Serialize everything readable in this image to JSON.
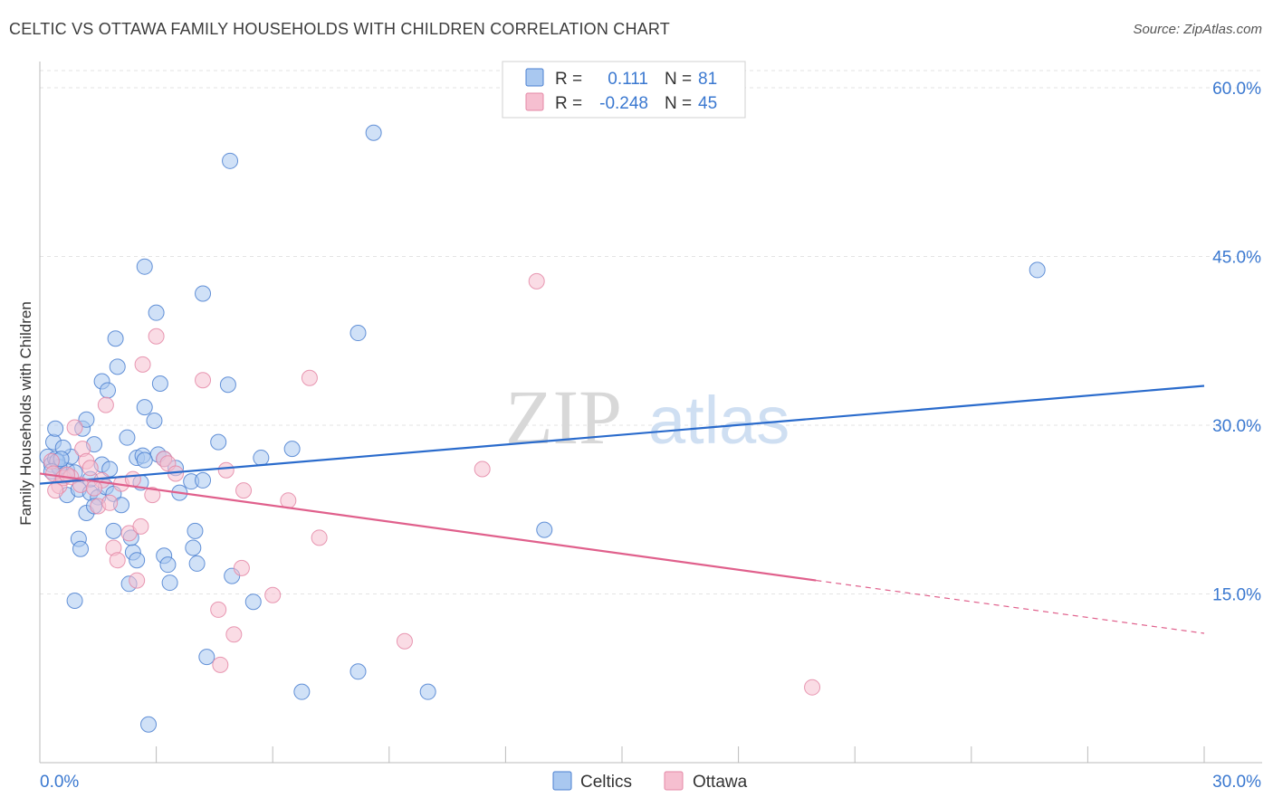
{
  "title": "CELTIC VS OTTAWA FAMILY HOUSEHOLDS WITH CHILDREN CORRELATION CHART",
  "source": "Source: ZipAtlas.com",
  "watermark": {
    "part1": "ZIP",
    "part2": "atlas"
  },
  "colors": {
    "celtics_fill": "#a9c8f0",
    "celtics_stroke": "#4a7fd0",
    "celtics_line": "#2a6bcc",
    "ottawa_fill": "#f6bfd0",
    "ottawa_stroke": "#e487a6",
    "ottawa_line": "#e0608c",
    "axis_label": "#3a78d0",
    "grid": "#e3e3e3",
    "text": "#333333"
  },
  "legend_stats": {
    "celtics": {
      "r_label": "R =",
      "r_value": "0.111",
      "n_label": "N =",
      "n_value": "81"
    },
    "ottawa": {
      "r_label": "R =",
      "r_value": "-0.248",
      "n_label": "N =",
      "n_value": "45"
    }
  },
  "chart_data": {
    "type": "scatter",
    "title": "CELTIC VS OTTAWA FAMILY HOUSEHOLDS WITH CHILDREN CORRELATION CHART",
    "xlabel": "",
    "ylabel": "Family Households with Children",
    "xlim": [
      0,
      30
    ],
    "ylim": [
      0,
      63
    ],
    "x_tick_labels": [
      "0.0%",
      "30.0%"
    ],
    "y_tick_labels": [
      "15.0%",
      "30.0%",
      "45.0%",
      "60.0%"
    ],
    "y_ticks": [
      15,
      30,
      45,
      60
    ],
    "grid": "horizontal dashed",
    "legend_position": "bottom-center",
    "series": [
      {
        "name": "Celtics",
        "color": "#4a7fd0",
        "points": [
          [
            0.2,
            27.2
          ],
          [
            0.3,
            26.5
          ],
          [
            0.4,
            27.0
          ],
          [
            0.5,
            26.2
          ],
          [
            0.35,
            28.5
          ],
          [
            0.4,
            29.7
          ],
          [
            0.6,
            25.5
          ],
          [
            0.7,
            26.0
          ],
          [
            0.5,
            26.3
          ],
          [
            0.8,
            27.2
          ],
          [
            0.9,
            25.8
          ],
          [
            0.7,
            23.8
          ],
          [
            0.6,
            28.0
          ],
          [
            1.0,
            24.3
          ],
          [
            1.1,
            29.7
          ],
          [
            1.2,
            30.5
          ],
          [
            1.4,
            28.3
          ],
          [
            1.3,
            24.0
          ],
          [
            1.5,
            23.6
          ],
          [
            1.2,
            22.2
          ],
          [
            1.4,
            22.8
          ],
          [
            1.6,
            26.5
          ],
          [
            1.8,
            26.1
          ],
          [
            1.7,
            24.5
          ],
          [
            1.9,
            23.9
          ],
          [
            2.1,
            22.9
          ],
          [
            1.6,
            33.9
          ],
          [
            1.75,
            33.1
          ],
          [
            1.95,
            37.7
          ],
          [
            2.0,
            35.2
          ],
          [
            2.25,
            28.9
          ],
          [
            2.5,
            27.1
          ],
          [
            2.6,
            24.9
          ],
          [
            2.65,
            27.3
          ],
          [
            2.7,
            31.6
          ],
          [
            2.95,
            30.4
          ],
          [
            3.0,
            40.0
          ],
          [
            3.1,
            33.7
          ],
          [
            3.2,
            18.4
          ],
          [
            3.3,
            17.6
          ],
          [
            3.35,
            16.0
          ],
          [
            3.05,
            27.4
          ],
          [
            3.2,
            27.0
          ],
          [
            2.7,
            44.1
          ],
          [
            3.6,
            24.0
          ],
          [
            3.9,
            25.0
          ],
          [
            4.2,
            25.1
          ],
          [
            4.0,
            20.6
          ],
          [
            3.95,
            19.1
          ],
          [
            4.05,
            17.7
          ],
          [
            4.2,
            41.7
          ],
          [
            4.6,
            28.5
          ],
          [
            4.85,
            33.6
          ],
          [
            4.95,
            16.6
          ],
          [
            4.9,
            53.5
          ],
          [
            4.3,
            9.4
          ],
          [
            5.5,
            14.3
          ],
          [
            5.7,
            27.1
          ],
          [
            6.5,
            27.9
          ],
          [
            6.75,
            6.3
          ],
          [
            8.2,
            38.2
          ],
          [
            8.2,
            8.1
          ],
          [
            8.6,
            56.0
          ],
          [
            10.0,
            6.3
          ],
          [
            13.0,
            20.7
          ],
          [
            25.7,
            43.8
          ],
          [
            2.8,
            3.4
          ],
          [
            2.3,
            15.9
          ],
          [
            1.9,
            20.6
          ],
          [
            1.0,
            19.9
          ],
          [
            1.05,
            19.0
          ],
          [
            2.4,
            18.7
          ],
          [
            2.5,
            18.0
          ],
          [
            0.9,
            14.4
          ],
          [
            2.35,
            20.0
          ],
          [
            2.7,
            26.9
          ],
          [
            1.3,
            25.2
          ],
          [
            0.45,
            26.8
          ],
          [
            0.3,
            25.9
          ],
          [
            0.55,
            27.0
          ],
          [
            3.5,
            26.2
          ]
        ]
      },
      {
        "name": "Ottawa",
        "color": "#e487a6",
        "points": [
          [
            0.3,
            26.8
          ],
          [
            0.35,
            25.7
          ],
          [
            0.5,
            24.6
          ],
          [
            0.6,
            25.3
          ],
          [
            0.4,
            24.2
          ],
          [
            0.8,
            25.4
          ],
          [
            0.9,
            29.8
          ],
          [
            1.05,
            24.7
          ],
          [
            1.1,
            27.9
          ],
          [
            1.2,
            26.8
          ],
          [
            1.3,
            26.2
          ],
          [
            1.5,
            22.8
          ],
          [
            1.6,
            25.1
          ],
          [
            1.7,
            31.8
          ],
          [
            1.8,
            23.1
          ],
          [
            1.9,
            19.1
          ],
          [
            2.0,
            18.0
          ],
          [
            2.1,
            24.8
          ],
          [
            2.3,
            20.4
          ],
          [
            2.4,
            25.2
          ],
          [
            2.5,
            16.2
          ],
          [
            2.6,
            21.0
          ],
          [
            2.9,
            23.8
          ],
          [
            3.0,
            37.9
          ],
          [
            3.2,
            27.0
          ],
          [
            3.3,
            26.6
          ],
          [
            2.65,
            35.4
          ],
          [
            3.5,
            25.7
          ],
          [
            4.2,
            34.0
          ],
          [
            4.6,
            13.6
          ],
          [
            4.65,
            8.7
          ],
          [
            5.0,
            11.4
          ],
          [
            5.2,
            17.3
          ],
          [
            5.25,
            24.2
          ],
          [
            6.0,
            14.9
          ],
          [
            6.4,
            23.3
          ],
          [
            6.95,
            34.2
          ],
          [
            7.2,
            20.0
          ],
          [
            9.4,
            10.8
          ],
          [
            11.4,
            26.1
          ],
          [
            12.8,
            42.8
          ],
          [
            19.9,
            6.7
          ],
          [
            4.8,
            26.0
          ],
          [
            0.7,
            25.6
          ],
          [
            1.4,
            24.4
          ]
        ]
      }
    ],
    "trend_lines": [
      {
        "series": "Celtics",
        "from": [
          0.0,
          24.8
        ],
        "to": [
          30.0,
          33.5
        ],
        "style": "solid"
      },
      {
        "series": "Ottawa",
        "from": [
          0.0,
          25.7
        ],
        "to": [
          20.0,
          16.2
        ],
        "style": "solid"
      },
      {
        "series": "Ottawa",
        "from": [
          20.0,
          16.2
        ],
        "to": [
          30.0,
          11.5
        ],
        "style": "dashed"
      }
    ]
  }
}
